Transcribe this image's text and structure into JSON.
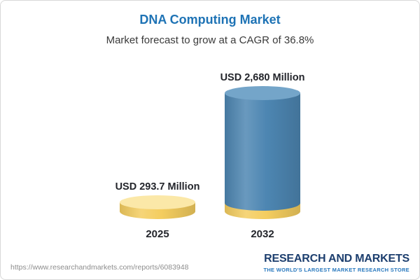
{
  "chart_data": {
    "type": "bar",
    "title": "DNA Computing Market",
    "subtitle": "Market forecast to grow at a CAGR of 36.8%",
    "categories": [
      "2025",
      "2032"
    ],
    "values": [
      293.7,
      2680
    ],
    "value_labels": [
      "USD 293.7 Million",
      "USD 2,680 Million"
    ],
    "unit": "USD Million",
    "cagr_percent": 36.8,
    "bar_colors": [
      "#f4cd5f",
      "#4d86b2"
    ],
    "legend": false,
    "grid": false
  },
  "footer": {
    "url": "https://www.researchandmarkets.com/reports/6083948",
    "logo_line1": "RESEARCH AND MARKETS",
    "logo_line2": "THE WORLD'S LARGEST MARKET RESEARCH STORE"
  },
  "colors": {
    "title-blue": "#1e73b5",
    "text-dark": "#23252b",
    "blue-body": "#4d86b2",
    "blue-top": "#74a5c9",
    "gold-body": "#f4cd5f",
    "gold-top": "#fbe8a8",
    "url-gray": "#8d8d8d",
    "logo-navy": "#1c3e6e",
    "logo-blue": "#2878be",
    "card-border": "#d8d8d8",
    "card-bg": "#ffffff"
  }
}
